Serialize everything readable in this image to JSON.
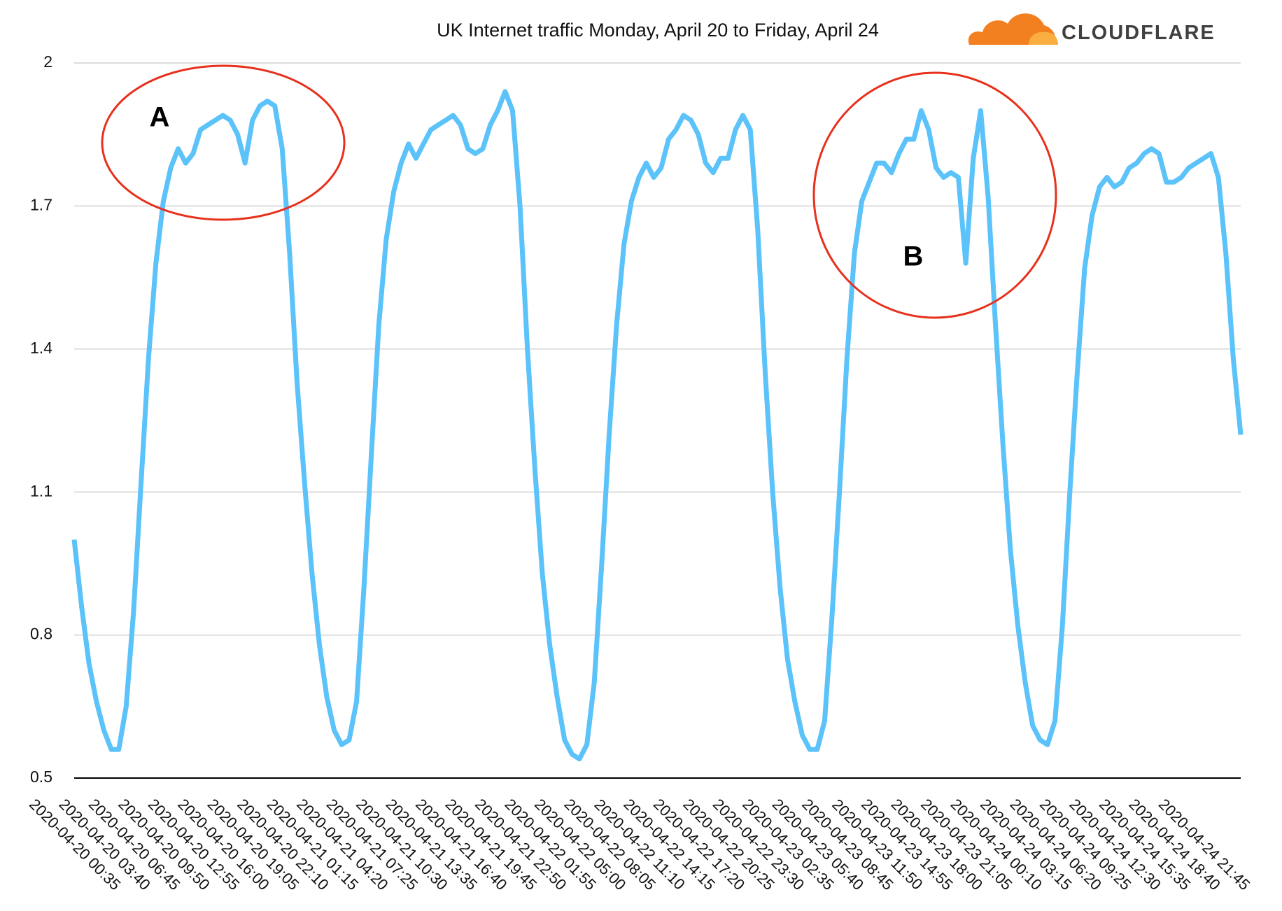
{
  "chart_data": {
    "type": "line",
    "title": "UK Internet traffic Monday, April 20 to Friday, April 24",
    "logo": "CLOUDFLARE",
    "annotations": [
      "A",
      "B"
    ],
    "color": "#5bc2fa",
    "grid": true,
    "ylim": [
      0.5,
      2
    ],
    "yticks": [
      0.5,
      0.8,
      1.1,
      1.4,
      1.7,
      2
    ],
    "categories": [
      "2020-04-20 00:35",
      null,
      null,
      null,
      "2020-04-20 03:40",
      null,
      null,
      null,
      "2020-04-20 06:45",
      null,
      null,
      null,
      "2020-04-20 09:50",
      null,
      null,
      null,
      "2020-04-20 12:55",
      null,
      null,
      null,
      "2020-04-20 16:00",
      null,
      null,
      null,
      "2020-04-20 19:05",
      null,
      null,
      null,
      "2020-04-20 22:10",
      null,
      null,
      null,
      "2020-04-21 01:15",
      null,
      null,
      null,
      "2020-04-21 04:20",
      null,
      null,
      null,
      "2020-04-21 07:25",
      null,
      null,
      null,
      "2020-04-21 10:30",
      null,
      null,
      null,
      "2020-04-21 13:35",
      null,
      null,
      null,
      "2020-04-21 16:40",
      null,
      null,
      null,
      "2020-04-21 19:45",
      null,
      null,
      null,
      "2020-04-21 22:50",
      null,
      null,
      null,
      "2020-04-22 01:55",
      null,
      null,
      null,
      "2020-04-22 05:00",
      null,
      null,
      null,
      "2020-04-22 08:05",
      null,
      null,
      null,
      "2020-04-22 11:10",
      null,
      null,
      null,
      "2020-04-22 14:15",
      null,
      null,
      null,
      "2020-04-22 17:20",
      null,
      null,
      null,
      "2020-04-22 20:25",
      null,
      null,
      null,
      "2020-04-22 23:30",
      null,
      null,
      null,
      "2020-04-23 02:35",
      null,
      null,
      null,
      "2020-04-23 05:40",
      null,
      null,
      null,
      "2020-04-23 08:45",
      null,
      null,
      null,
      "2020-04-23 11:50",
      null,
      null,
      null,
      "2020-04-23 14:55",
      null,
      null,
      null,
      "2020-04-23 18:00",
      null,
      null,
      null,
      "2020-04-23 21:05",
      null,
      null,
      null,
      "2020-04-24 00:10",
      null,
      null,
      null,
      "2020-04-24 03:15",
      null,
      null,
      null,
      "2020-04-24 06:20",
      null,
      null,
      null,
      "2020-04-24 09:25",
      null,
      null,
      null,
      "2020-04-24 12:30",
      null,
      null,
      null,
      "2020-04-24 15:35",
      null,
      null,
      null,
      "2020-04-24 18:40",
      null,
      null,
      null,
      "2020-04-24 21:45",
      null,
      null,
      null,
      null,
      null
    ],
    "values": [
      1.0,
      0.86,
      0.74,
      0.66,
      0.6,
      0.56,
      0.56,
      0.65,
      0.85,
      1.12,
      1.38,
      1.58,
      1.71,
      1.78,
      1.82,
      1.79,
      1.81,
      1.86,
      1.87,
      1.88,
      1.89,
      1.88,
      1.85,
      1.79,
      1.88,
      1.91,
      1.92,
      1.91,
      1.82,
      1.6,
      1.33,
      1.12,
      0.93,
      0.78,
      0.67,
      0.6,
      0.57,
      0.58,
      0.66,
      0.9,
      1.18,
      1.45,
      1.63,
      1.73,
      1.79,
      1.83,
      1.8,
      1.83,
      1.86,
      1.87,
      1.88,
      1.89,
      1.87,
      1.82,
      1.81,
      1.82,
      1.87,
      1.9,
      1.94,
      1.9,
      1.7,
      1.4,
      1.15,
      0.93,
      0.78,
      0.67,
      0.58,
      0.55,
      0.54,
      0.57,
      0.7,
      0.95,
      1.22,
      1.45,
      1.62,
      1.71,
      1.76,
      1.79,
      1.76,
      1.78,
      1.84,
      1.86,
      1.89,
      1.88,
      1.85,
      1.79,
      1.77,
      1.8,
      1.8,
      1.86,
      1.89,
      1.86,
      1.65,
      1.35,
      1.1,
      0.9,
      0.75,
      0.66,
      0.59,
      0.56,
      0.56,
      0.62,
      0.84,
      1.1,
      1.38,
      1.6,
      1.71,
      1.75,
      1.79,
      1.79,
      1.77,
      1.81,
      1.84,
      1.84,
      1.9,
      1.86,
      1.78,
      1.76,
      1.77,
      1.76,
      1.58,
      1.8,
      1.9,
      1.72,
      1.45,
      1.2,
      0.98,
      0.82,
      0.7,
      0.61,
      0.58,
      0.57,
      0.62,
      0.82,
      1.1,
      1.35,
      1.57,
      1.68,
      1.74,
      1.76,
      1.74,
      1.75,
      1.78,
      1.79,
      1.81,
      1.82,
      1.81,
      1.75,
      1.75,
      1.76,
      1.78,
      1.79,
      1.8,
      1.81,
      1.76,
      1.6,
      1.38,
      1.22
    ]
  }
}
